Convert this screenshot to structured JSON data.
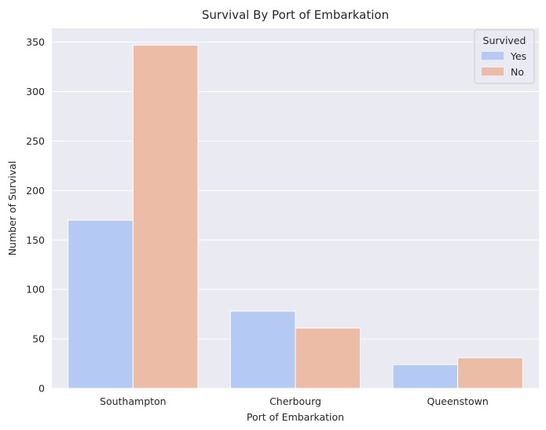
{
  "chart_data": {
    "type": "bar",
    "title": "Survival By Port of Embarkation",
    "xlabel": "Port of Embarkation",
    "ylabel": "Number of Survival",
    "categories": [
      "Southampton",
      "Cherbourg",
      "Queenstown"
    ],
    "series": [
      {
        "name": "Yes",
        "values": [
          170,
          78,
          24
        ],
        "color": "#b4c9f4"
      },
      {
        "name": "No",
        "values": [
          347,
          61,
          31
        ],
        "color": "#ecbca6"
      }
    ],
    "ylim": [
      0,
      364
    ],
    "yticks": [
      0,
      50,
      100,
      150,
      200,
      250,
      300,
      350
    ],
    "grid": true,
    "legend": {
      "title": "Survived",
      "placement": "top-right"
    },
    "background_color": "#eaeaf2"
  }
}
